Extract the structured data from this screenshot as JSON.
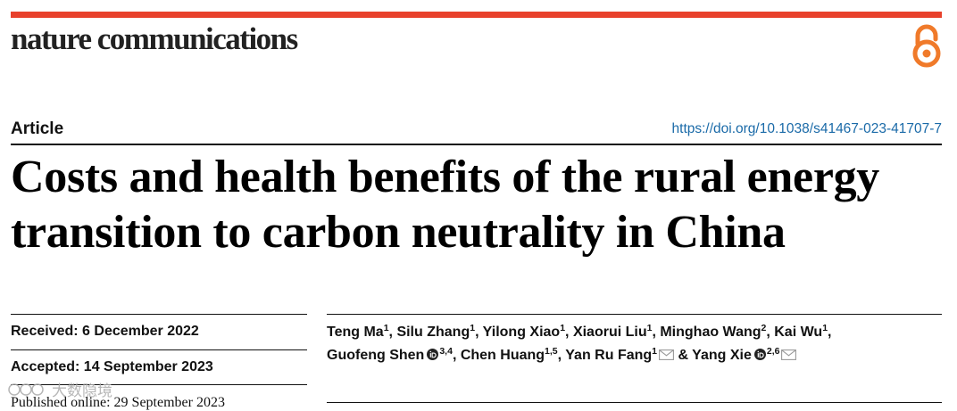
{
  "header": {
    "journal_name": "nature communications",
    "open_access_icon": "open-access-lock-icon",
    "accent_color": "#e8412c"
  },
  "article": {
    "type": "Article",
    "doi": "https://doi.org/10.1038/s41467-023-41707-7",
    "title_line1": "Costs and health benefits of the rural energy",
    "title_line2": "transition to carbon neutrality in China"
  },
  "dates": {
    "received": "Received: 6 December 2022",
    "accepted": "Accepted: 14 September 2023",
    "published": "Published online: 29 September 2023"
  },
  "authors": [
    {
      "name": "Teng Ma",
      "aff": "1",
      "sep": ", "
    },
    {
      "name": "Silu Zhang",
      "aff": "1",
      "sep": ", "
    },
    {
      "name": "Yilong Xiao",
      "aff": "1",
      "sep": ", "
    },
    {
      "name": "Xiaorui Liu",
      "aff": "1",
      "sep": ", "
    },
    {
      "name": "Minghao Wang",
      "aff": "2",
      "sep": ", "
    },
    {
      "name": "Kai Wu",
      "aff": "1",
      "sep": ","
    },
    {
      "name": "Guofeng Shen",
      "aff": "3,4",
      "sep": ", ",
      "orcid": true
    },
    {
      "name": "Chen Huang",
      "aff": "1,5",
      "sep": ", "
    },
    {
      "name": "Yan Ru Fang",
      "aff": "1",
      "sep": " & ",
      "mail": true
    },
    {
      "name": "Yang Xie",
      "aff": "2,6",
      "sep": "",
      "orcid": true,
      "mail": true
    }
  ],
  "watermark": {
    "text": "大数隐境"
  }
}
